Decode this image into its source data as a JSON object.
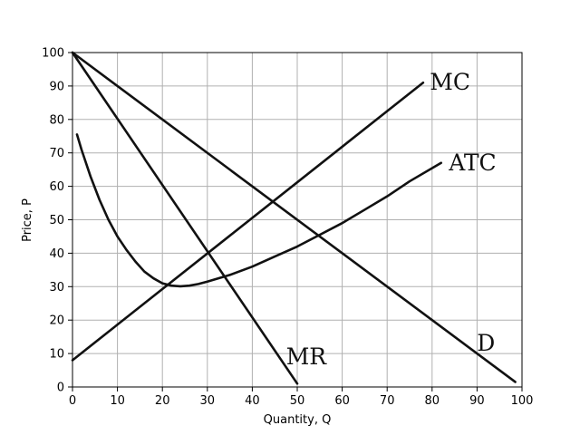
{
  "chart_data": {
    "type": "line",
    "title": "",
    "xlabel": "Quantity, Q",
    "ylabel": "Price, P",
    "xlim": [
      0,
      100
    ],
    "ylim": [
      0,
      100
    ],
    "xticks": [
      0,
      10,
      20,
      30,
      40,
      50,
      60,
      70,
      80,
      90,
      100
    ],
    "yticks": [
      0,
      10,
      20,
      30,
      40,
      50,
      60,
      70,
      80,
      90,
      100
    ],
    "grid": true,
    "line_color": "#111111",
    "series": [
      {
        "name": "MC",
        "x": [
          0,
          78
        ],
        "y": [
          8,
          91
        ],
        "label_at": [
          84,
          91
        ]
      },
      {
        "name": "ATC",
        "x": [
          1,
          2,
          4,
          6,
          8,
          10,
          12,
          14,
          16,
          18,
          20,
          22,
          24,
          26,
          28,
          30,
          35,
          40,
          45,
          50,
          55,
          60,
          65,
          70,
          75,
          82
        ],
        "y": [
          75.5,
          71,
          63,
          56,
          50,
          45,
          41,
          37.5,
          34.5,
          32.5,
          31,
          30.3,
          30.1,
          30.3,
          30.8,
          31.5,
          33.5,
          36,
          39,
          42,
          45.5,
          49,
          53,
          57,
          61.5,
          67
        ],
        "label_at": [
          89,
          67
        ]
      },
      {
        "name": "D",
        "x": [
          0,
          98.5
        ],
        "y": [
          100,
          1.5
        ],
        "label_at": [
          92,
          13
        ]
      },
      {
        "name": "MR",
        "x": [
          0,
          50
        ],
        "y": [
          100,
          1
        ],
        "label_at": [
          52,
          9
        ]
      }
    ]
  }
}
